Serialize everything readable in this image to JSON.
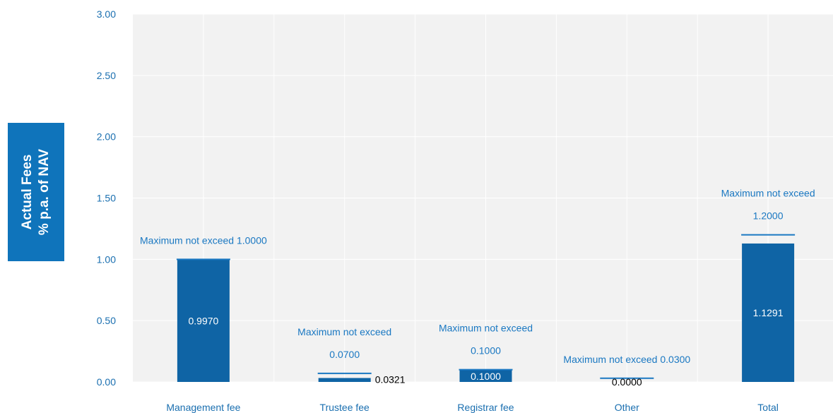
{
  "chart_data": {
    "type": "bar",
    "ylabel": "Actual Fees\n% p.a. of  NAV",
    "ylim": [
      0,
      3
    ],
    "yticks": [
      "0.00",
      "0.50",
      "1.00",
      "1.50",
      "2.00",
      "2.50",
      "3.00"
    ],
    "grid": true,
    "categories": [
      "Management fee",
      "Trustee fee",
      "Registrar fee",
      "Other",
      "Total"
    ],
    "series": [
      {
        "values": [
          0.997,
          0.0321,
          0.1,
          0.0,
          1.1291
        ],
        "labels": [
          "0.9970",
          "0.0321",
          "0.1000",
          "0.0000",
          "1.1291"
        ]
      },
      {
        "values": [
          1.0,
          0.07,
          0.1,
          0.03,
          1.2
        ],
        "labels": [
          [
            "Maximum not exceed 1.0000"
          ],
          [
            "Maximum not exceed",
            "0.0700"
          ],
          [
            "Maximum not exceed",
            "0.1000"
          ],
          [
            "Maximum not exceed 0.0300"
          ],
          [
            "Maximum not exceed",
            "1.2000"
          ]
        ]
      }
    ],
    "colors": {
      "bar": "#0f64a5",
      "max_line": "#1a78c2",
      "max_label": "#1a78c2",
      "axis_text": "#1a6fb0",
      "plot_bg": "#f2f2f2",
      "grid": "#ffffff"
    }
  }
}
